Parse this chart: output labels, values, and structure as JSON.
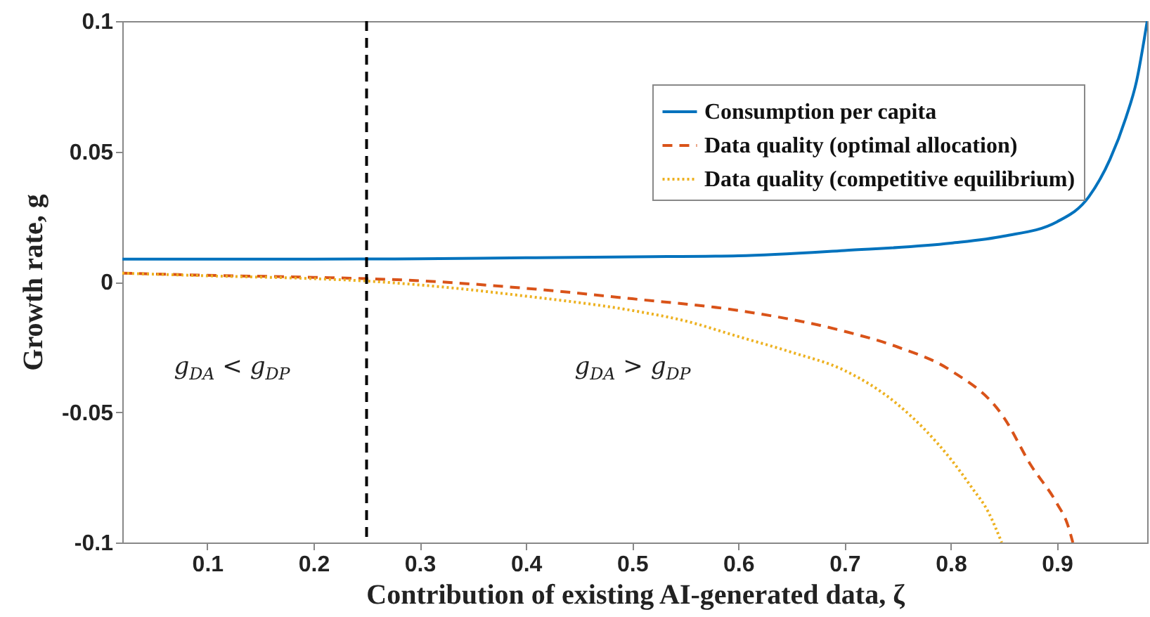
{
  "chart_data": {
    "type": "line",
    "xlabel": "Contribution of existing AI-generated data, ζ",
    "ylabel": "Growth rate, g",
    "xlim": [
      0.02,
      0.985
    ],
    "ylim": [
      -0.1,
      0.1
    ],
    "xticks": [
      0.1,
      0.2,
      0.3,
      0.4,
      0.5,
      0.6,
      0.7,
      0.8,
      0.9
    ],
    "yticks": [
      -0.1,
      -0.05,
      0,
      0.05,
      0.1
    ],
    "series": [
      {
        "name": "Consumption per capita",
        "color": "#0072bd",
        "line_style": "solid",
        "x": [
          0.02,
          0.1,
          0.2,
          0.3,
          0.4,
          0.5,
          0.6,
          0.7,
          0.8,
          0.85,
          0.9,
          0.93,
          0.95,
          0.965,
          0.975,
          0.985
        ],
        "values": [
          0.0087,
          0.0087,
          0.0087,
          0.0088,
          0.0092,
          0.0096,
          0.01,
          0.012,
          0.0148,
          0.0175,
          0.023,
          0.0326,
          0.047,
          0.063,
          0.077,
          0.1
        ]
      },
      {
        "name": "Data quality (optimal allocation)",
        "color": "#d95319",
        "line_style": "dashed",
        "x": [
          0.02,
          0.1,
          0.2,
          0.25,
          0.3,
          0.4,
          0.5,
          0.6,
          0.7,
          0.75,
          0.8,
          0.85,
          0.875,
          0.9,
          0.91,
          0.915
        ],
        "values": [
          0.0033,
          0.0025,
          0.0017,
          0.0012,
          0.0004,
          -0.0025,
          -0.0065,
          -0.011,
          -0.019,
          -0.025,
          -0.034,
          -0.052,
          -0.07,
          -0.085,
          -0.093,
          -0.1
        ]
      },
      {
        "name": "Data quality (competitive equilibrium)",
        "color": "#edb120",
        "line_style": "dotted",
        "x": [
          0.02,
          0.1,
          0.2,
          0.25,
          0.3,
          0.4,
          0.5,
          0.55,
          0.6,
          0.65,
          0.7,
          0.75,
          0.8,
          0.82,
          0.835,
          0.848
        ],
        "values": [
          0.0033,
          0.0023,
          0.0012,
          0.0003,
          -0.0012,
          -0.0055,
          -0.011,
          -0.015,
          -0.021,
          -0.027,
          -0.034,
          -0.047,
          -0.068,
          -0.079,
          -0.088,
          -0.1
        ]
      }
    ],
    "ref_lines": [
      {
        "axis": "x",
        "value": 0.25,
        "color": "#000000",
        "line_style": "dashed"
      }
    ],
    "annotations": [
      "g$_{DA}$ < g$_{DP}$",
      "g$_{DA}$ > g$_{DP}$"
    ],
    "legend": "top right",
    "grid": false
  }
}
